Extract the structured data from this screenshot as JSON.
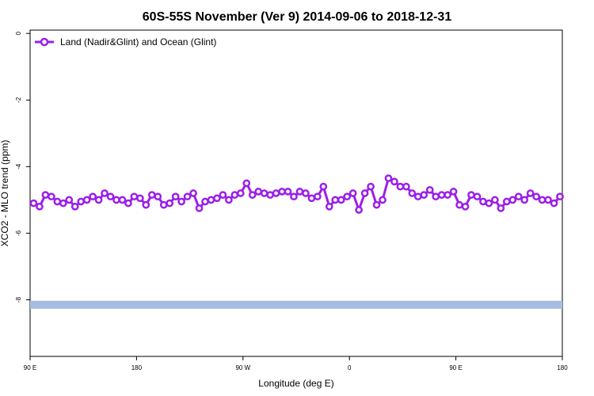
{
  "chart_data": {
    "type": "line",
    "title": "60S-55S November (Ver 9)   2014-09-06 to 2018-12-31",
    "xlabel": "Longitude (deg E)",
    "ylabel": "XCO2 - MLO trend (ppm)",
    "x_ticks": [
      {
        "value": 90,
        "label": "90 E"
      },
      {
        "value": 180,
        "label": "180"
      },
      {
        "value": 270,
        "label": "90 W"
      },
      {
        "value": 360,
        "label": "0"
      },
      {
        "value": 450,
        "label": "90 E"
      },
      {
        "value": 540,
        "label": "180"
      }
    ],
    "y_ticks": [
      {
        "value": 0,
        "label": "0"
      },
      {
        "value": -2,
        "label": "-2"
      },
      {
        "value": -4,
        "label": "-4"
      },
      {
        "value": -6,
        "label": "-6"
      },
      {
        "value": -8,
        "label": "-8"
      }
    ],
    "xlim": [
      90,
      540
    ],
    "ylim": [
      -9.7,
      0.1
    ],
    "grid": false,
    "legend_position": "top-left",
    "colors": {
      "series": "#9b1fe8",
      "band": "#a5bde0"
    },
    "band": {
      "y_min": -8.27,
      "y_max": -8.03
    },
    "series": [
      {
        "name": "Land (Nadir&Glint) and Ocean (Glint)",
        "x": [
          93,
          98,
          103,
          108,
          113,
          118,
          123,
          128,
          133,
          138,
          143,
          148,
          153,
          158,
          163,
          168,
          173,
          178,
          183,
          188,
          193,
          198,
          203,
          208,
          213,
          218,
          223,
          228,
          233,
          238,
          243,
          248,
          253,
          258,
          263,
          268,
          273,
          278,
          283,
          288,
          293,
          298,
          303,
          308,
          313,
          318,
          323,
          328,
          333,
          338,
          343,
          348,
          353,
          358,
          363,
          368,
          373,
          378,
          383,
          388,
          393,
          398,
          403,
          408,
          413,
          418,
          423,
          428,
          433,
          438,
          443,
          448,
          453,
          458,
          463,
          468,
          473,
          478,
          483,
          488,
          493,
          498,
          503,
          508,
          513,
          518,
          523,
          528,
          533,
          538
        ],
        "y": [
          -5.1,
          -5.2,
          -4.85,
          -4.9,
          -5.05,
          -5.1,
          -5.0,
          -5.2,
          -5.05,
          -5.0,
          -4.9,
          -5.0,
          -4.8,
          -4.9,
          -5.0,
          -5.0,
          -5.1,
          -4.9,
          -4.95,
          -5.15,
          -4.85,
          -4.9,
          -5.15,
          -5.1,
          -4.9,
          -5.05,
          -4.9,
          -4.8,
          -5.25,
          -5.05,
          -5.0,
          -4.95,
          -4.85,
          -5.0,
          -4.85,
          -4.8,
          -4.5,
          -4.85,
          -4.75,
          -4.8,
          -4.85,
          -4.8,
          -4.75,
          -4.75,
          -4.9,
          -4.75,
          -4.8,
          -4.95,
          -4.9,
          -4.6,
          -5.2,
          -5.0,
          -5.0,
          -4.9,
          -4.8,
          -5.3,
          -4.8,
          -4.6,
          -5.15,
          -5.0,
          -4.35,
          -4.45,
          -4.6,
          -4.6,
          -4.8,
          -4.9,
          -4.85,
          -4.7,
          -4.9,
          -4.85,
          -4.85,
          -4.75,
          -5.15,
          -5.2,
          -4.85,
          -4.9,
          -5.05,
          -5.1,
          -5.0,
          -5.25,
          -5.05,
          -5.0,
          -4.9,
          -5.0,
          -4.8,
          -4.9,
          -5.0,
          -5.0,
          -5.1,
          -4.9
        ]
      }
    ]
  }
}
